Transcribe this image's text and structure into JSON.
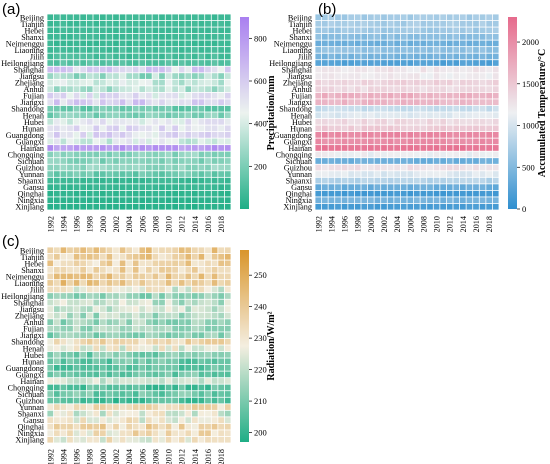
{
  "years": [
    "1992",
    "1993",
    "1994",
    "1995",
    "1996",
    "1997",
    "1998",
    "1999",
    "2000",
    "2001",
    "2002",
    "2003",
    "2004",
    "2005",
    "2006",
    "2007",
    "2008",
    "2009",
    "2010",
    "2011",
    "2012",
    "2013",
    "2014",
    "2015",
    "2016",
    "2017",
    "2018",
    "2019"
  ],
  "year_ticks": [
    "1992",
    "1994",
    "1996",
    "1998",
    "2000",
    "2002",
    "2004",
    "2006",
    "2008",
    "2010",
    "2012",
    "2014",
    "2016",
    "2018"
  ],
  "provinces_a": [
    "Beijing",
    "Tianjin",
    "Hebei",
    "Shanxi",
    "Neimenggu",
    "Liaoning",
    "Jilin",
    "Heilongjiang",
    "Shanghai",
    "Jiangsu",
    "Zhejiang",
    "Anhui",
    "Fujian",
    "Jiangxi",
    "Shandong",
    "Henan",
    "Hubei",
    "Hunan",
    "Guangdong",
    "Guangxi",
    "Hainan",
    "Chongqing",
    "Sichuan",
    "Guizhou",
    "Yunnan",
    "Shaanxi",
    "Gansu",
    "Qinghai",
    "Ningxia",
    "Xinjiang"
  ],
  "provinces_b": [
    "Beijing",
    "Tianjin",
    "Hebei",
    "Shanxi",
    "Neimenggu",
    "Liaoning",
    "Jilin",
    "Heilongjiang",
    "Shanghai",
    "Jiangsu",
    "Zhejiang",
    "Anhui",
    "Fujian",
    "Jiangxi",
    "Shandong",
    "Henan",
    "Hubei",
    "Hunan",
    "Guangdong",
    "Guangxi",
    "Hainan",
    "Chongqing",
    "Sichuan",
    "Guizhou",
    "Yunnan",
    "Shaanxi",
    "Gansu",
    "Qinghai",
    "Ningxia",
    "Xinjiang"
  ],
  "provinces_c": [
    "Beijing",
    "Tianjin",
    "Hebei",
    "Shanxi",
    "Neimenggu",
    "Liaoning",
    "Jilin",
    "Heilongjiang",
    "Shanghai",
    "Jiangsu",
    "Zhejiang",
    "Anhui",
    "Fujian",
    "Jiangxi",
    "Shandong",
    "Henan",
    "Hubei",
    "Hunan",
    "Guangdong",
    "Guangxi",
    "Hainan",
    "Chongqing",
    "Sichuan",
    "Guizhou",
    "Yunnan",
    "Shaanxi",
    "Gansu",
    "Qinghai",
    "Ningxia",
    "Xinjiang"
  ],
  "colors": {
    "precip_low": "#1fae86",
    "precip_mid": "#ecf3ef",
    "precip_high": "#a97ff0",
    "temp_low": "#2f8fcf",
    "temp_mid": "#eef0f2",
    "temp_high": "#e66a8c",
    "rad_low": "#1fae86",
    "rad_mid": "#f4eee0",
    "rad_high": "#d9952b"
  },
  "chart_data": [
    {
      "type": "heatmap",
      "panel": "(a)",
      "colorbar_label": "Precipitation/mm",
      "colorbar_range": [
        0,
        900
      ],
      "colorbar_ticks": [
        "200",
        "400",
        "600",
        "800"
      ],
      "rows": "provinces_a",
      "cols": "years",
      "row_means": [
        70,
        70,
        70,
        70,
        60,
        90,
        90,
        120,
        560,
        300,
        380,
        330,
        500,
        580,
        170,
        210,
        460,
        520,
        520,
        420,
        800,
        240,
        220,
        260,
        170,
        60,
        50,
        40,
        30,
        20
      ],
      "row_amp": [
        15,
        15,
        15,
        15,
        15,
        30,
        30,
        30,
        120,
        120,
        100,
        100,
        120,
        100,
        60,
        70,
        110,
        90,
        120,
        110,
        60,
        60,
        50,
        50,
        50,
        20,
        15,
        15,
        10,
        10
      ]
    },
    {
      "type": "heatmap",
      "panel": "(b)",
      "colorbar_label": "Accumulated Temperature/°C",
      "colorbar_range": [
        0,
        2300
      ],
      "colorbar_ticks": [
        "0",
        "500",
        "1000",
        "1500",
        "2000"
      ],
      "rows": "provinces_b",
      "cols": "years",
      "row_means": [
        700,
        720,
        680,
        550,
        400,
        580,
        430,
        200,
        1250,
        1200,
        1400,
        1350,
        1700,
        1650,
        900,
        1050,
        1350,
        1450,
        2050,
        2000,
        2200,
        1150,
        380,
        1300,
        1050,
        800,
        350,
        120,
        420,
        150
      ],
      "row_amp": [
        60,
        60,
        60,
        60,
        60,
        60,
        60,
        60,
        80,
        80,
        80,
        80,
        80,
        80,
        70,
        70,
        80,
        80,
        60,
        60,
        50,
        80,
        60,
        80,
        80,
        70,
        60,
        40,
        60,
        40
      ]
    },
    {
      "type": "heatmap",
      "panel": "(c)",
      "colorbar_label": "Radiation/W/m²",
      "colorbar_range": [
        197,
        258
      ],
      "colorbar_ticks": [
        "200",
        "210",
        "220",
        "230",
        "240",
        "250"
      ],
      "rows": "provinces_c",
      "cols": "years",
      "row_means": [
        238,
        238,
        236,
        238,
        240,
        240,
        226,
        214,
        220,
        222,
        218,
        215,
        216,
        212,
        234,
        226,
        210,
        208,
        206,
        208,
        222,
        205,
        209,
        203,
        234,
        224,
        228,
        235,
        232,
        228
      ],
      "row_amp": [
        9,
        9,
        9,
        9,
        7,
        9,
        9,
        6,
        8,
        7,
        8,
        7,
        6,
        6,
        8,
        8,
        6,
        6,
        5,
        6,
        5,
        6,
        6,
        5,
        6,
        9,
        9,
        9,
        9,
        9
      ]
    }
  ]
}
